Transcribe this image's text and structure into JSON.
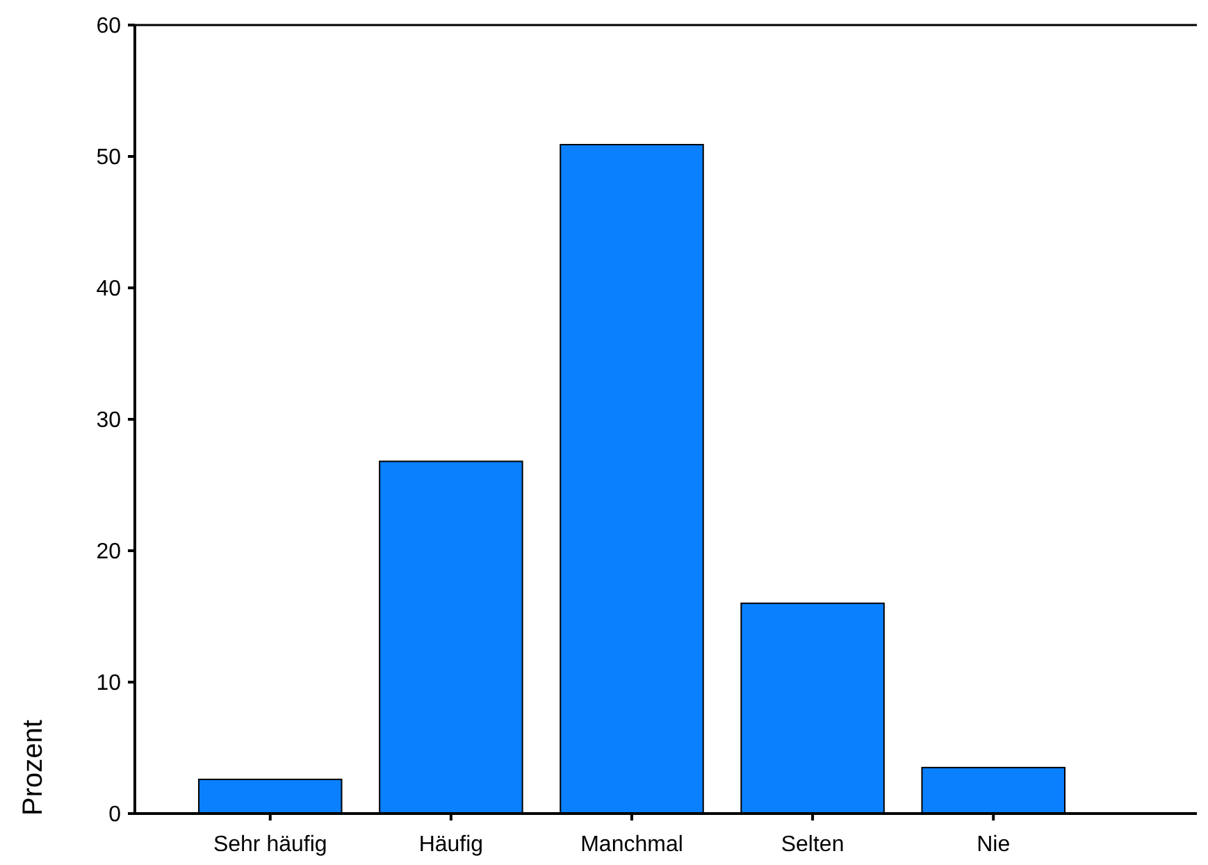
{
  "chart_data": {
    "type": "bar",
    "ylabel": "Prozent",
    "categories": [
      "Sehr häufig",
      "Häufig",
      "Manchmal",
      "Selten",
      "Nie"
    ],
    "values": [
      2.6,
      26.8,
      50.9,
      16.0,
      3.5
    ],
    "color": "#0a80ff",
    "ylim": [
      0,
      60
    ],
    "yticks": [
      0,
      10,
      20,
      30,
      40,
      50,
      60
    ],
    "grid": false
  }
}
